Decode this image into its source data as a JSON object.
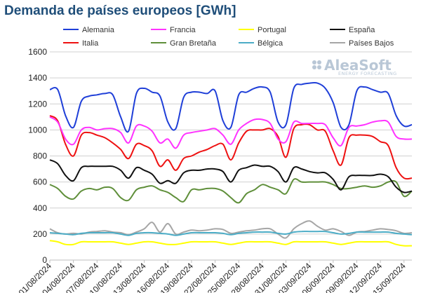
{
  "chart_data": {
    "type": "line",
    "title": "Demanda de países europeos [GWh]",
    "watermark": {
      "brand": "AleaSoft",
      "tagline": "ENERGY FORECASTING"
    },
    "ylim": [
      0,
      1600
    ],
    "y_ticks": [
      0,
      200,
      400,
      600,
      800,
      1000,
      1200,
      1400,
      1600
    ],
    "x_tick_labels": [
      "01/08/2024",
      "04/08/2024",
      "07/08/2024",
      "10/08/2024",
      "13/08/2024",
      "16/08/2024",
      "19/08/2024",
      "22/08/2024",
      "25/08/2024",
      "28/08/2024",
      "31/08/2024",
      "03/09/2024",
      "06/09/2024",
      "09/09/2024",
      "12/09/2024",
      "15/09/2024"
    ],
    "x": [
      "01/08/2024",
      "02/08/2024",
      "03/08/2024",
      "04/08/2024",
      "05/08/2024",
      "06/08/2024",
      "07/08/2024",
      "08/08/2024",
      "09/08/2024",
      "10/08/2024",
      "11/08/2024",
      "12/08/2024",
      "13/08/2024",
      "14/08/2024",
      "15/08/2024",
      "16/08/2024",
      "17/08/2024",
      "18/08/2024",
      "19/08/2024",
      "20/08/2024",
      "21/08/2024",
      "22/08/2024",
      "23/08/2024",
      "24/08/2024",
      "25/08/2024",
      "26/08/2024",
      "27/08/2024",
      "28/08/2024",
      "29/08/2024",
      "30/08/2024",
      "31/08/2024",
      "01/09/2024",
      "02/09/2024",
      "03/09/2024",
      "04/09/2024",
      "05/09/2024",
      "06/09/2024",
      "07/09/2024",
      "08/09/2024",
      "09/09/2024",
      "10/09/2024",
      "11/09/2024",
      "12/09/2024",
      "13/09/2024",
      "14/09/2024",
      "15/09/2024",
      "16/09/2024"
    ],
    "grid": true,
    "legend_position": "top",
    "series": [
      {
        "name": "Alemania",
        "color": "#1f3fd8",
        "values": [
          1310,
          1310,
          1110,
          1020,
          1220,
          1260,
          1270,
          1280,
          1270,
          1100,
          990,
          1280,
          1320,
          1290,
          1260,
          1060,
          1010,
          1250,
          1290,
          1290,
          1280,
          1300,
          1070,
          1020,
          1270,
          1290,
          1320,
          1330,
          1290,
          1060,
          1040,
          1320,
          1350,
          1360,
          1360,
          1320,
          1210,
          1020,
          1040,
          1300,
          1330,
          1310,
          1290,
          1280,
          1110,
          1030,
          1040
        ]
      },
      {
        "name": "Francia",
        "color": "#ff33ff",
        "values": [
          1100,
          1060,
          930,
          890,
          1000,
          1020,
          1000,
          1010,
          1010,
          980,
          900,
          1030,
          1030,
          990,
          900,
          930,
          860,
          960,
          980,
          990,
          1000,
          1010,
          960,
          890,
          1000,
          1050,
          1080,
          1080,
          1050,
          930,
          910,
          1060,
          1050,
          1050,
          1050,
          1040,
          940,
          880,
          1020,
          1030,
          1040,
          1060,
          1070,
          1060,
          950,
          930,
          930
        ]
      },
      {
        "name": "Portugal",
        "color": "#ffff00",
        "values": [
          150,
          140,
          120,
          120,
          140,
          140,
          140,
          140,
          140,
          130,
          120,
          130,
          140,
          140,
          130,
          120,
          120,
          130,
          140,
          140,
          140,
          140,
          130,
          120,
          130,
          140,
          140,
          140,
          140,
          130,
          120,
          140,
          140,
          140,
          140,
          140,
          130,
          120,
          130,
          140,
          140,
          140,
          140,
          140,
          120,
          110,
          110
        ]
      },
      {
        "name": "España",
        "color": "#111111",
        "values": [
          770,
          740,
          650,
          610,
          710,
          720,
          720,
          720,
          720,
          690,
          630,
          710,
          690,
          660,
          590,
          610,
          590,
          670,
          690,
          690,
          700,
          700,
          680,
          600,
          690,
          710,
          730,
          720,
          720,
          680,
          600,
          710,
          700,
          680,
          670,
          670,
          620,
          540,
          640,
          650,
          650,
          650,
          660,
          640,
          560,
          520,
          530
        ]
      },
      {
        "name": "Italia",
        "color": "#ee1111",
        "values": [
          1110,
          1070,
          890,
          800,
          960,
          980,
          960,
          940,
          900,
          850,
          780,
          890,
          880,
          840,
          720,
          770,
          690,
          780,
          800,
          830,
          850,
          880,
          890,
          770,
          900,
          990,
          1000,
          1000,
          1010,
          950,
          790,
          1010,
          1040,
          1040,
          1000,
          990,
          840,
          730,
          940,
          960,
          960,
          950,
          910,
          880,
          710,
          630,
          630
        ]
      },
      {
        "name": "Gran Bretaña",
        "color": "#5f8f3a",
        "values": [
          580,
          550,
          490,
          470,
          530,
          550,
          540,
          560,
          550,
          480,
          460,
          540,
          560,
          570,
          540,
          520,
          480,
          450,
          540,
          540,
          550,
          550,
          530,
          480,
          440,
          510,
          540,
          580,
          560,
          540,
          510,
          620,
          600,
          600,
          600,
          600,
          580,
          550,
          550,
          560,
          570,
          560,
          570,
          600,
          600,
          490,
          530
        ]
      },
      {
        "name": "Bélgica",
        "color": "#4bacc6",
        "values": [
          210,
          205,
          200,
          195,
          205,
          210,
          210,
          210,
          210,
          200,
          190,
          205,
          210,
          210,
          205,
          200,
          190,
          200,
          210,
          210,
          210,
          210,
          205,
          195,
          205,
          210,
          215,
          215,
          215,
          205,
          200,
          215,
          220,
          220,
          220,
          220,
          210,
          200,
          205,
          215,
          215,
          215,
          215,
          215,
          205,
          200,
          195
        ]
      },
      {
        "name": "Países Bajos",
        "color": "#a6a6a6",
        "values": [
          240,
          210,
          200,
          205,
          200,
          215,
          220,
          225,
          215,
          210,
          195,
          215,
          240,
          290,
          215,
          280,
          200,
          215,
          230,
          225,
          230,
          240,
          235,
          205,
          215,
          225,
          230,
          240,
          240,
          200,
          170,
          240,
          280,
          300,
          260,
          230,
          240,
          220,
          190,
          215,
          220,
          230,
          240,
          235,
          225,
          205,
          210
        ]
      }
    ]
  }
}
